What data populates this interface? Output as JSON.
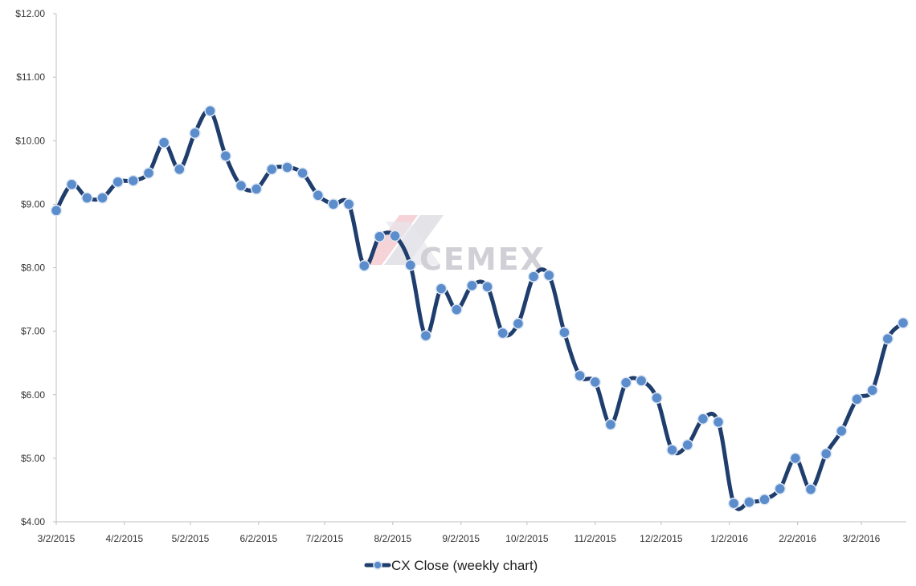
{
  "chart_data": {
    "type": "line",
    "title": "",
    "xlabel": "",
    "ylabel": "",
    "ylim": [
      4,
      12
    ],
    "y_ticks": [
      "$4.00",
      "$5.00",
      "$6.00",
      "$7.00",
      "$8.00",
      "$9.00",
      "$10.00",
      "$11.00",
      "$12.00"
    ],
    "x_ticks": [
      "3/2/2015",
      "4/2/2015",
      "5/2/2015",
      "6/2/2015",
      "7/2/2015",
      "8/2/2015",
      "9/2/2015",
      "10/2/2015",
      "11/2/2015",
      "12/2/2015",
      "1/2/2016",
      "2/2/2016",
      "3/2/2016"
    ],
    "grid": false,
    "legend": "bottom",
    "watermark": "CEMEX",
    "colors": {
      "line": "#1f3e6e",
      "marker": "#5b8ccc",
      "marker_edge": "#dfe8f4"
    },
    "series": [
      {
        "name": "CX Close  (weekly chart)",
        "x": [
          "3/2/2015",
          "3/9/2015",
          "3/16/2015",
          "3/23/2015",
          "3/30/2015",
          "4/6/2015",
          "4/13/2015",
          "4/20/2015",
          "4/27/2015",
          "5/4/2015",
          "5/11/2015",
          "5/18/2015",
          "5/25/2015",
          "6/1/2015",
          "6/8/2015",
          "6/15/2015",
          "6/22/2015",
          "6/29/2015",
          "7/6/2015",
          "7/13/2015",
          "7/20/2015",
          "7/27/2015",
          "8/3/2015",
          "8/10/2015",
          "8/17/2015",
          "8/24/2015",
          "8/31/2015",
          "9/7/2015",
          "9/14/2015",
          "9/21/2015",
          "9/28/2015",
          "10/5/2015",
          "10/12/2015",
          "10/19/2015",
          "10/26/2015",
          "11/2/2015",
          "11/9/2015",
          "11/16/2015",
          "11/23/2015",
          "11/30/2015",
          "12/7/2015",
          "12/14/2015",
          "12/21/2015",
          "12/28/2015",
          "1/4/2016",
          "1/11/2016",
          "1/18/2016",
          "1/25/2016",
          "2/1/2016",
          "2/8/2016",
          "2/15/2016",
          "2/22/2016",
          "2/29/2016",
          "3/7/2016",
          "3/14/2016",
          "3/21/2016"
        ],
        "values": [
          8.9,
          9.31,
          9.1,
          9.1,
          9.35,
          9.37,
          9.49,
          9.97,
          9.55,
          10.12,
          10.47,
          9.76,
          9.29,
          9.24,
          9.55,
          9.58,
          9.49,
          9.14,
          9.0,
          9.0,
          8.03,
          8.49,
          8.5,
          8.04,
          6.93,
          7.67,
          7.34,
          7.72,
          7.7,
          6.97,
          7.12,
          7.86,
          7.88,
          6.98,
          6.3,
          6.2,
          5.53,
          6.19,
          6.22,
          5.95,
          5.13,
          5.21,
          5.62,
          5.57,
          4.29,
          4.31,
          4.35,
          4.52,
          5.0,
          4.51,
          5.07,
          5.43,
          5.93,
          6.07,
          6.88,
          7.13
        ]
      }
    ]
  }
}
